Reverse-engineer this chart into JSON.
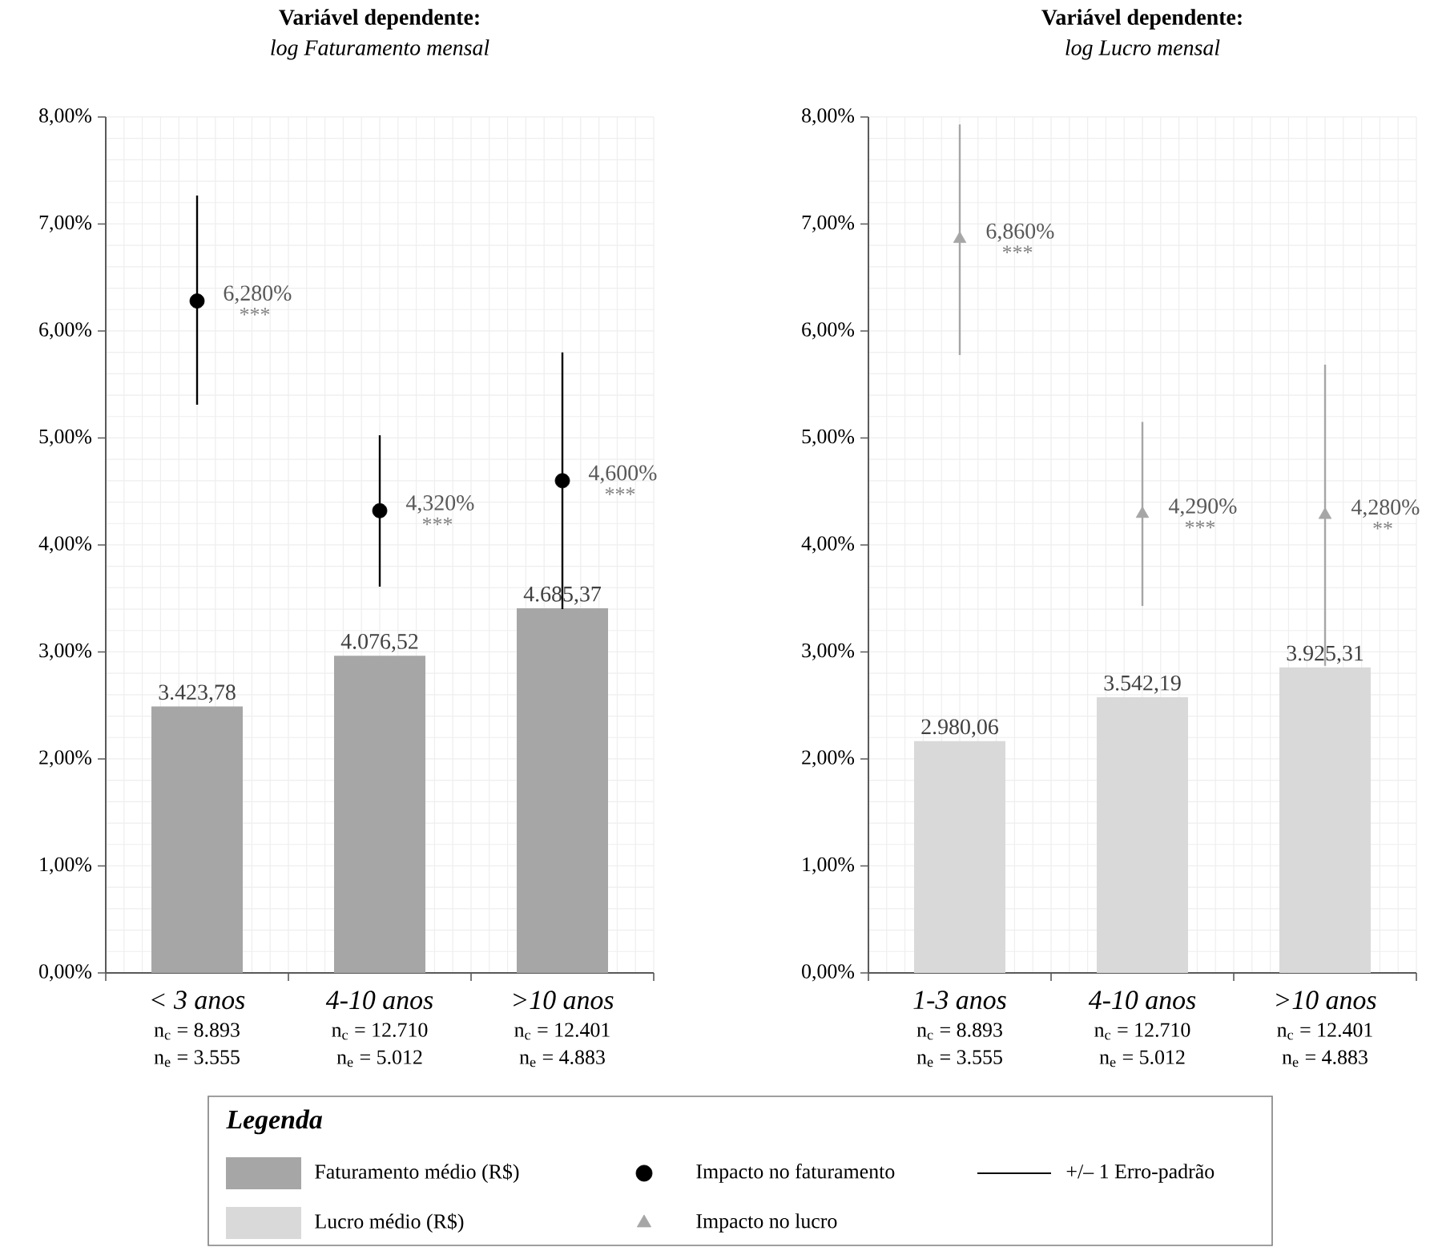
{
  "chart_data": [
    {
      "type": "bar",
      "title": "Variável dependente:",
      "subtitle": "*log Faturamento mensal*",
      "categories": [
        "< 3 anos",
        "4-10 anos",
        ">10 anos"
      ],
      "series": [
        {
          "name": "Faturamento médio (R$)",
          "color": "#a6a6a6",
          "axis": "y2",
          "values": [
            3423.78,
            4076.52,
            4685.37
          ],
          "value_labels": [
            "3.423,78",
            "4.076,52",
            "4.685,37"
          ]
        },
        {
          "name": "Impacto no faturamento",
          "type": "scatter",
          "marker": "circle",
          "color": "#000000",
          "values": [
            6.28,
            4.32,
            4.6
          ],
          "errors": [
            [
              5.31,
              7.265
            ],
            [
              3.61,
              5.025
            ],
            [
              3.4,
              5.8
            ]
          ]
        }
      ],
      "ylim": [
        0,
        8
      ],
      "yticks": [
        {
          "value": 0,
          "label": "0,00%"
        },
        {
          "value": 1,
          "label": "1,00%"
        },
        {
          "value": 2,
          "label": "2,00%"
        },
        {
          "value": 3,
          "label": "3,00%"
        },
        {
          "value": 4,
          "label": "4,00%"
        },
        {
          "value": 5,
          "label": "5,00%"
        },
        {
          "value": 6,
          "label": "6,00%"
        },
        {
          "value": 7,
          "label": "7,00%"
        },
        {
          "value": 8,
          "label": "8,00%"
        }
      ],
      "y2lim": [
        0,
        11000
      ],
      "grid": true,
      "legend": "bottom",
      "legend_title": "Legenda",
      "annotations": [
        "n$_{c}$ = 8.893",
        "n$_{e}$ = 3.555",
        "n$_{c}$ = 12.710",
        "n$_{e}$ = 5.012",
        "n$_{c}$ = 12.401",
        "n$_{e}$ = 4.883",
        "6,280%",
        "4,320%",
        "4,600%",
        "***",
        "***",
        "***",
        "+/– 1 Erro-padrão"
      ]
    },
    {
      "type": "bar",
      "title": "Variável dependente:",
      "subtitle": "*log Lucro mensal*",
      "categories": [
        "1-3 anos",
        "4-10 anos",
        ">10 anos"
      ],
      "series": [
        {
          "name": "Lucro médio (R$)",
          "color": "#d9d9d9",
          "axis": "y2",
          "values": [
            2980.06,
            3542.19,
            3925.31
          ],
          "value_labels": [
            "2.980,06",
            "3.542,19",
            "3.925,31"
          ]
        },
        {
          "name": "Impacto no lucro",
          "type": "scatter",
          "marker": "triangle",
          "color": "#a6a6a6",
          "values": [
            6.86,
            4.29,
            4.28
          ],
          "errors": [
            [
              5.775,
              7.93
            ],
            [
              3.43,
              5.15
            ],
            [
              2.87,
              5.685
            ]
          ]
        }
      ],
      "ylim": [
        0,
        8
      ],
      "yticks": [
        {
          "value": 0,
          "label": "0,00%"
        },
        {
          "value": 1,
          "label": "1,00%"
        },
        {
          "value": 2,
          "label": "2,00%"
        },
        {
          "value": 3,
          "label": "3,00%"
        },
        {
          "value": 4,
          "label": "4,00%"
        },
        {
          "value": 5,
          "label": "5,00%"
        },
        {
          "value": 6,
          "label": "6,00%"
        },
        {
          "value": 7,
          "label": "7,00%"
        },
        {
          "value": 8,
          "label": "8,00%"
        }
      ],
      "y2lim": [
        0,
        11000
      ],
      "grid": true,
      "legend": "bottom",
      "annotations": [
        "n$_{c}$ = 8.893",
        "n$_{e}$ = 3.555",
        "n$_{c}$ = 12.710",
        "n$_{e}$ = 5.012",
        "n$_{c}$ = 12.401",
        "n$_{e}$ = 4.883",
        "6,860%",
        "4,290%",
        "4,280%",
        "***",
        "***",
        "**"
      ]
    }
  ]
}
